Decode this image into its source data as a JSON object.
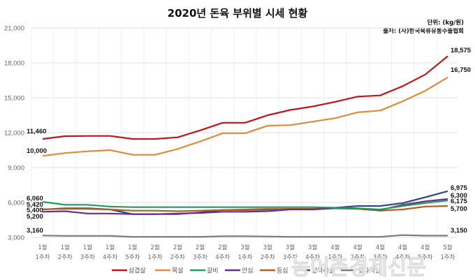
{
  "chart_data": {
    "type": "line",
    "title": "2020년 돈육 부위별 시세 현황",
    "unit_note": "단위: (kg/원)",
    "source_note": "출처: (사)한국육류유통수출협회",
    "xlabel": "",
    "ylabel": "",
    "ylim": [
      3000,
      21000
    ],
    "yticks": [
      3000,
      6000,
      9000,
      12000,
      15000,
      18000,
      21000
    ],
    "ytick_labels": [
      "3,000",
      "6,000",
      "9,000",
      "12,000",
      "15,000",
      "18,000",
      "21,000"
    ],
    "grid": true,
    "legend_position": "bottom",
    "categories": [
      {
        "month": "1월",
        "week": "1주차"
      },
      {
        "month": "1월",
        "week": "2주차"
      },
      {
        "month": "1월",
        "week": "3주차"
      },
      {
        "month": "1월",
        "week": "4주차"
      },
      {
        "month": "1월",
        "week": "5주차"
      },
      {
        "month": "2월",
        "week": "1주차"
      },
      {
        "month": "2월",
        "week": "2주차"
      },
      {
        "month": "2월",
        "week": "3주차"
      },
      {
        "month": "2월",
        "week": "4주차"
      },
      {
        "month": "3월",
        "week": "1주차"
      },
      {
        "month": "3월",
        "week": "2주차"
      },
      {
        "month": "3월",
        "week": "3주차"
      },
      {
        "month": "3월",
        "week": "4주차"
      },
      {
        "month": "4월",
        "week": "1주차"
      },
      {
        "month": "4월",
        "week": "2주차"
      },
      {
        "month": "4월",
        "week": "3주차"
      },
      {
        "month": "4월",
        "week": "4주차"
      },
      {
        "month": "4월",
        "week": "5주차"
      },
      {
        "month": "5월",
        "week": "1주차"
      }
    ],
    "series": [
      {
        "name": "삼겹살",
        "color": "#c0141c",
        "start_label": "11,460",
        "end_label": "18,575",
        "values": [
          11460,
          11700,
          11720,
          11720,
          11460,
          11460,
          11600,
          12200,
          12850,
          12850,
          13500,
          13950,
          14250,
          14650,
          15100,
          15200,
          16000,
          17000,
          18575
        ]
      },
      {
        "name": "목살",
        "color": "#e08a3c",
        "start_label": "10,000",
        "end_label": "16,750",
        "values": [
          10000,
          10250,
          10400,
          10500,
          10100,
          10100,
          10600,
          11250,
          11950,
          11950,
          12600,
          12650,
          12950,
          13250,
          13750,
          13900,
          14700,
          15600,
          16750
        ]
      },
      {
        "name": "갈비",
        "color": "#1e9e5a",
        "start_label": "6,060",
        "end_label": "6,175",
        "values": [
          6060,
          5800,
          5800,
          5650,
          5600,
          5600,
          5600,
          5600,
          5600,
          5600,
          5600,
          5600,
          5600,
          5550,
          5500,
          5400,
          5700,
          5950,
          6175
        ]
      },
      {
        "name": "안심",
        "color": "#6a2c91",
        "start_label": "5,200",
        "end_label": "6,300",
        "values": [
          5200,
          5250,
          5050,
          5050,
          5000,
          5000,
          5050,
          5100,
          5200,
          5200,
          5250,
          5400,
          5400,
          5500,
          5500,
          5350,
          5800,
          6100,
          6300
        ]
      },
      {
        "name": "등심",
        "color": "#b0601e",
        "start_label": "5,420",
        "end_label": "5,700",
        "values": [
          5420,
          5450,
          5450,
          5400,
          5300,
          5300,
          5250,
          5300,
          5350,
          5400,
          5450,
          5450,
          5450,
          5500,
          5450,
          5300,
          5400,
          5650,
          5700
        ]
      },
      {
        "name": "앞다리살",
        "color": "#2b4a86",
        "start_label": "5,400",
        "end_label": "6,975",
        "values": [
          5400,
          5500,
          5500,
          5400,
          5000,
          5000,
          5000,
          5150,
          5350,
          5350,
          5400,
          5450,
          5450,
          5550,
          5700,
          5700,
          5950,
          6450,
          6975
        ]
      },
      {
        "name": "뒷다리살",
        "color": "#7a7a7a",
        "start_label": "3,160",
        "end_label": "3,150",
        "values": [
          3160,
          3130,
          3130,
          3130,
          3050,
          3050,
          3050,
          3050,
          3100,
          3100,
          3080,
          3050,
          3050,
          3050,
          3050,
          3050,
          3200,
          3150,
          3150
        ]
      }
    ]
  },
  "watermark": "농어촌경제신문",
  "colors": {
    "grid": "#e6e6e6",
    "axis_text": "#666666"
  }
}
